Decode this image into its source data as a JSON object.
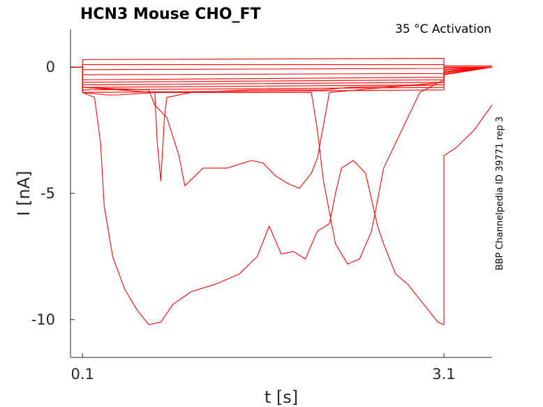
{
  "chart_data": {
    "type": "line",
    "title": "HCN3  Mouse  CHO_FT",
    "annotation": "35 °C  Activation",
    "side_label": "BBP Channelpedia ID 39771 rep 3",
    "xlabel": "t [s]",
    "ylabel": "I [nA]",
    "xlim": [
      0.0,
      3.5
    ],
    "ylim": [
      -11.5,
      1.5
    ],
    "x_ticks": [
      0.1,
      3.1
    ],
    "x_tick_labels": [
      "0.1",
      "3.1"
    ],
    "y_ticks": [
      0,
      -5,
      -10
    ],
    "y_tick_labels": [
      "0",
      "-5",
      "-10"
    ],
    "grid": false,
    "trace_color": "#ff0000",
    "series": [
      {
        "x": [
          0.0,
          0.1,
          0.1,
          3.1,
          3.1,
          3.5
        ],
        "y": [
          0,
          0,
          0.3,
          0.35,
          0.0,
          0.0
        ]
      },
      {
        "x": [
          0.0,
          0.1,
          0.1,
          3.1,
          3.1,
          3.5
        ],
        "y": [
          0,
          0,
          0.1,
          0.1,
          0.0,
          0.0
        ]
      },
      {
        "x": [
          0.0,
          0.1,
          0.1,
          3.1,
          3.1,
          3.5
        ],
        "y": [
          0,
          0,
          -0.1,
          -0.05,
          0.05,
          0.05
        ]
      },
      {
        "x": [
          0.0,
          0.1,
          0.1,
          3.1,
          3.1,
          3.5
        ],
        "y": [
          0,
          0,
          -0.3,
          -0.25,
          -0.05,
          0.0
        ]
      },
      {
        "x": [
          0.0,
          0.1,
          0.1,
          3.1,
          3.1,
          3.5
        ],
        "y": [
          0,
          0,
          -0.5,
          -0.4,
          -0.1,
          0.0
        ]
      },
      {
        "x": [
          0.0,
          0.1,
          0.1,
          3.1,
          3.1,
          3.5
        ],
        "y": [
          0,
          0,
          -0.6,
          -0.5,
          -0.15,
          0.0
        ]
      },
      {
        "x": [
          0.0,
          0.1,
          0.1,
          3.1,
          3.1,
          3.5
        ],
        "y": [
          0,
          0,
          -0.7,
          -0.6,
          -0.2,
          0.0
        ]
      },
      {
        "x": [
          0.0,
          0.1,
          0.1,
          3.1,
          3.1,
          3.5
        ],
        "y": [
          0,
          0,
          -0.8,
          -0.7,
          -0.25,
          0.0
        ]
      },
      {
        "x": [
          0.0,
          0.1,
          0.1,
          3.1,
          3.1,
          3.5
        ],
        "y": [
          0,
          0,
          -0.9,
          -0.8,
          -0.3,
          0.0
        ]
      },
      {
        "x": [
          0.0,
          0.1,
          0.1,
          3.1,
          3.1,
          3.5
        ],
        "y": [
          0,
          0,
          -1.0,
          -0.9,
          -0.3,
          0.0
        ]
      },
      {
        "x": [
          0.0,
          0.1,
          0.1,
          0.7,
          0.72,
          0.75,
          0.78,
          0.8,
          1.0,
          1.5,
          1.7,
          2.0,
          2.05,
          2.1,
          2.3,
          3.1,
          3.1,
          3.5
        ],
        "y": [
          0,
          0,
          -0.8,
          -1.0,
          -3.0,
          -4.5,
          -2.0,
          -1.2,
          -1.0,
          -0.9,
          -0.9,
          -0.9,
          -0.9,
          -0.9,
          -0.8,
          -0.7,
          -0.2,
          0.0
        ]
      },
      {
        "x": [
          0.0,
          0.1,
          0.1,
          0.65,
          0.7,
          0.8,
          0.9,
          0.95,
          1.1,
          1.3,
          1.5,
          1.6,
          1.7,
          1.8,
          1.9,
          2.0,
          2.05,
          2.15,
          3.1,
          3.1,
          3.5
        ],
        "y": [
          0,
          0,
          -0.8,
          -0.9,
          -1.5,
          -2.0,
          -3.5,
          -4.7,
          -4.0,
          -4.0,
          -3.7,
          -3.8,
          -4.3,
          -4.6,
          -4.8,
          -4.2,
          -3.6,
          -1.0,
          -0.6,
          -0.2,
          0.0
        ]
      },
      {
        "x": [
          0.0,
          0.1,
          0.1,
          0.3,
          0.4,
          0.7,
          1.0,
          1.5,
          1.8,
          2.0,
          2.05,
          2.1,
          2.2,
          2.3,
          2.4,
          2.5,
          2.6,
          2.9,
          3.1,
          3.1,
          3.5
        ],
        "y": [
          0,
          0,
          -1.0,
          -1.1,
          -1.1,
          -1.0,
          -1.0,
          -1.0,
          -1.0,
          -1.0,
          -2.5,
          -4.5,
          -7.0,
          -7.8,
          -7.6,
          -6.5,
          -4.0,
          -1.0,
          -0.5,
          -0.2,
          0.0
        ]
      },
      {
        "x": [
          0.0,
          0.1,
          0.1,
          0.2,
          0.25,
          0.28,
          0.35,
          0.45,
          0.55,
          0.6,
          0.65,
          0.75,
          0.85,
          1.0,
          1.2,
          1.4,
          1.55,
          1.65,
          1.75,
          1.85,
          1.95,
          2.05,
          2.15,
          2.2,
          2.25,
          2.35,
          2.45,
          2.55,
          2.6,
          2.7,
          2.8,
          2.95,
          3.05,
          3.1,
          3.1,
          3.2,
          3.35,
          3.5
        ],
        "y": [
          0,
          0,
          -1.0,
          -1.2,
          -3.0,
          -5.5,
          -7.5,
          -8.8,
          -9.6,
          -9.9,
          -10.2,
          -10.1,
          -9.4,
          -8.9,
          -8.6,
          -8.2,
          -7.5,
          -6.3,
          -7.4,
          -7.3,
          -7.6,
          -6.5,
          -6.2,
          -5.0,
          -4.0,
          -3.7,
          -4.2,
          -6.3,
          -7.0,
          -8.2,
          -8.6,
          -9.5,
          -10.1,
          -10.2,
          -3.5,
          -3.2,
          -2.5,
          -1.5
        ]
      }
    ]
  }
}
